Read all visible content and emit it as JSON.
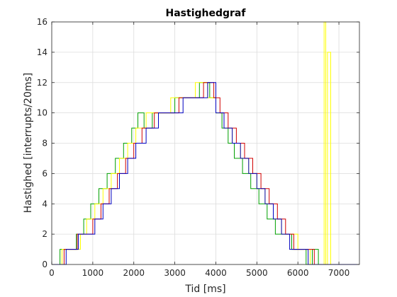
{
  "chart_data": {
    "type": "line",
    "title": "Hastighedgraf",
    "xlabel": "Tid [ms]",
    "ylabel": "Hastighed [interrupts/20ms]",
    "xlim": [
      0,
      7500
    ],
    "ylim": [
      0,
      16
    ],
    "xticks": [
      0,
      1000,
      2000,
      3000,
      4000,
      5000,
      6000,
      7000
    ],
    "yticks": [
      0,
      2,
      4,
      6,
      8,
      10,
      12,
      14,
      16
    ],
    "grid": true,
    "series": [
      {
        "color": "#00a000",
        "x": [
          0,
          200,
          430,
          600,
          780,
          950,
          1150,
          1350,
          1550,
          1750,
          1950,
          2100,
          2250,
          2450,
          2700,
          3000,
          3300,
          3600,
          3850,
          4000,
          4150,
          4300,
          4450,
          4650,
          4850,
          5050,
          5250,
          5450,
          5650,
          5850,
          6050,
          6200,
          6350,
          6500,
          7500
        ],
        "y": [
          0,
          1,
          1,
          2,
          3,
          4,
          5,
          6,
          7,
          8,
          9,
          10,
          9,
          10,
          10,
          11,
          11,
          12,
          11,
          10,
          9,
          8,
          7,
          6,
          5,
          4,
          3,
          2,
          2,
          1,
          1,
          0,
          1,
          0,
          0
        ]
      },
      {
        "color": "#ffff00",
        "x": [
          0,
          250,
          500,
          700,
          850,
          1050,
          1250,
          1450,
          1650,
          1850,
          2050,
          2300,
          2550,
          2900,
          3200,
          3500,
          3800,
          4000,
          4200,
          4400,
          4600,
          4800,
          5000,
          5200,
          5400,
          5600,
          5800,
          6000,
          6300,
          6600,
          6640,
          6680,
          6720,
          6800,
          7500
        ],
        "y": [
          0,
          1,
          1,
          2,
          3,
          4,
          5,
          6,
          7,
          8,
          9,
          10,
          10,
          11,
          11,
          12,
          11,
          10,
          9,
          8,
          7,
          6,
          5,
          4,
          3,
          2,
          2,
          1,
          0,
          0,
          16,
          0,
          14,
          0,
          0
        ]
      },
      {
        "color": "#d00000",
        "x": [
          0,
          300,
          620,
          800,
          1000,
          1200,
          1400,
          1600,
          1800,
          2000,
          2200,
          2500,
          2800,
          3100,
          3400,
          3700,
          3950,
          4100,
          4300,
          4500,
          4700,
          4900,
          5100,
          5300,
          5500,
          5700,
          5900,
          6100,
          6400,
          7500
        ],
        "y": [
          0,
          1,
          2,
          2,
          3,
          4,
          5,
          6,
          7,
          8,
          9,
          10,
          10,
          11,
          11,
          12,
          11,
          10,
          9,
          8,
          7,
          6,
          5,
          4,
          3,
          2,
          1,
          1,
          0,
          0
        ]
      },
      {
        "color": "#0000c0",
        "x": [
          0,
          350,
          650,
          850,
          1050,
          1250,
          1450,
          1650,
          1850,
          2050,
          2300,
          2600,
          2900,
          3200,
          3500,
          3800,
          4000,
          4200,
          4400,
          4600,
          4800,
          5000,
          5200,
          5400,
          5600,
          5800,
          6000,
          6250,
          7500
        ],
        "y": [
          0,
          1,
          2,
          2,
          3,
          4,
          5,
          6,
          7,
          8,
          9,
          10,
          10,
          11,
          11,
          12,
          10,
          9,
          8,
          7,
          6,
          5,
          4,
          3,
          2,
          1,
          1,
          0,
          0
        ]
      }
    ]
  }
}
